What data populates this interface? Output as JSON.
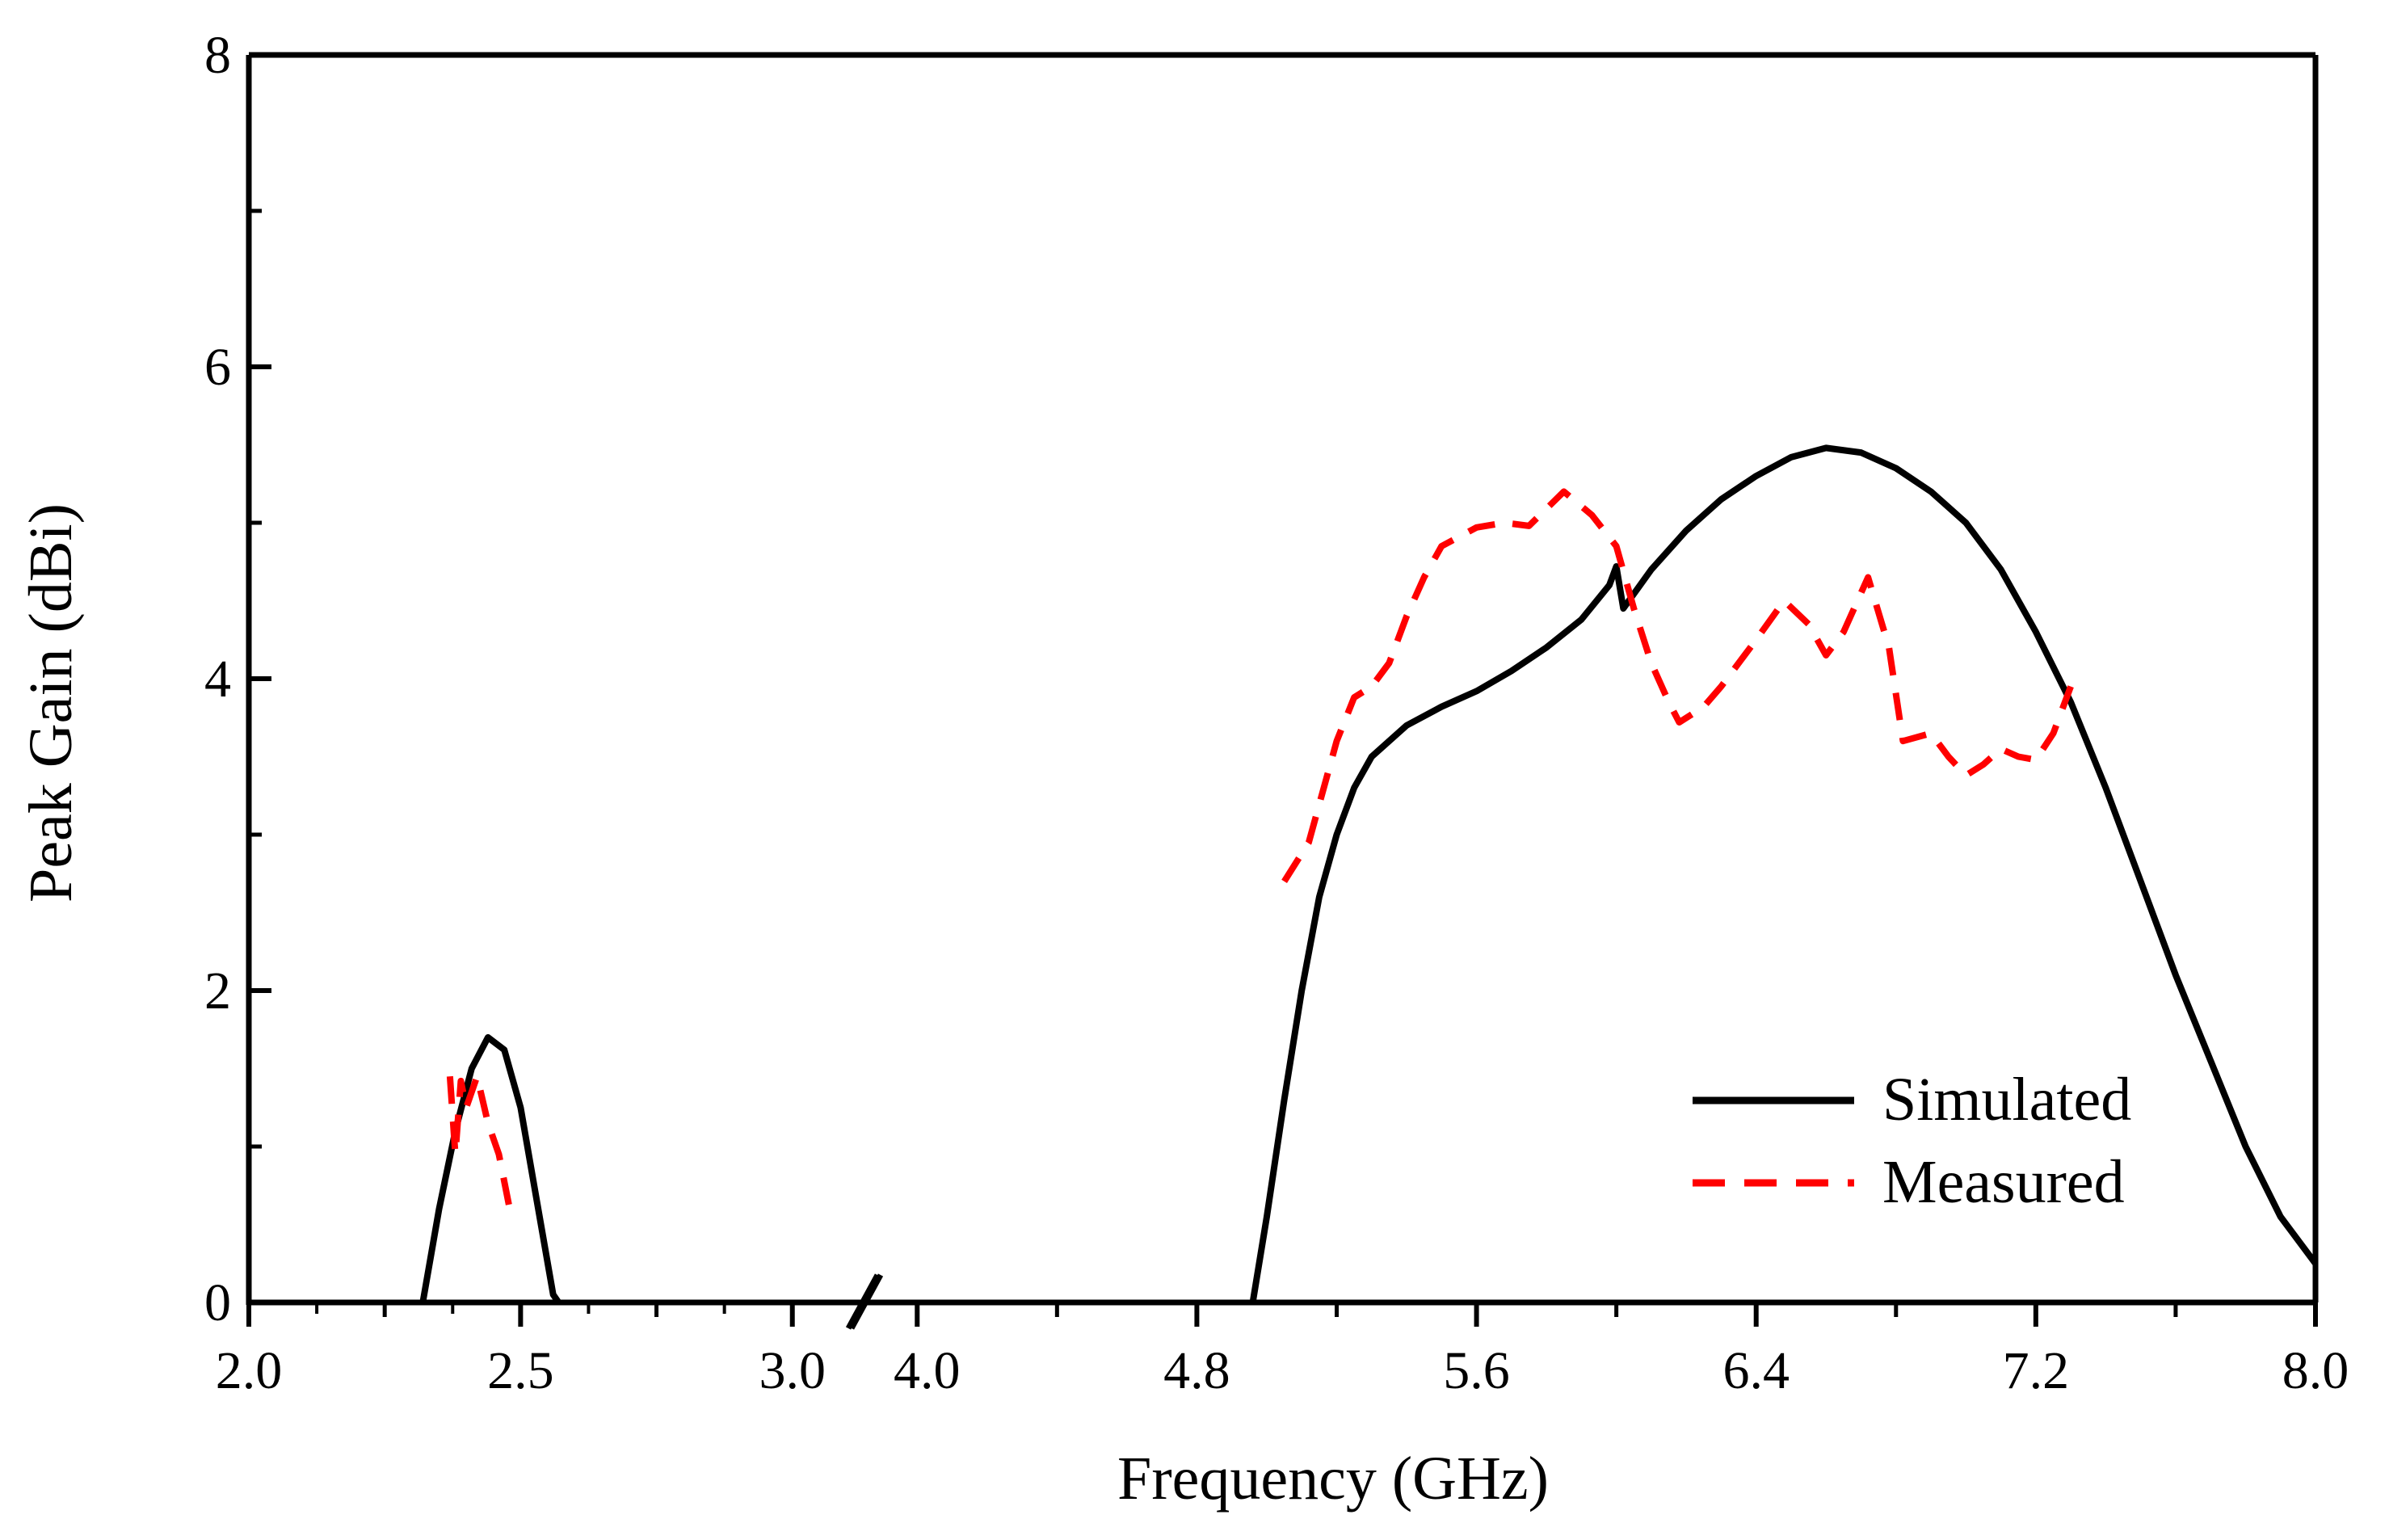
{
  "chart_data": {
    "type": "line",
    "title": "",
    "xlabel": "Frequency (GHz)",
    "ylabel": "Peak Gain (dBi)",
    "ylim": [
      0,
      8
    ],
    "yticks": [
      0,
      2,
      4,
      6,
      8
    ],
    "axis_break": {
      "from": 3.1,
      "to": 3.9
    },
    "x_segments": [
      {
        "range": [
          2.0,
          3.1
        ],
        "ticks": [
          2.0,
          2.5,
          3.0
        ],
        "tick_labels": [
          "2.0",
          "2.5",
          "3.0"
        ]
      },
      {
        "range": [
          3.9,
          8.0
        ],
        "ticks": [
          4.0,
          4.8,
          5.6,
          6.4,
          7.2,
          8.0
        ],
        "tick_labels": [
          "4.0",
          "4.8",
          "5.6",
          "6.4",
          "7.2",
          "8.0"
        ]
      }
    ],
    "legend": {
      "position": "bottom-right",
      "entries": [
        "Simulated",
        "Measured"
      ]
    },
    "series": [
      {
        "name": "Simulated",
        "color": "#000000",
        "style": "solid",
        "segments": [
          [
            [
              2.32,
              0
            ],
            [
              2.35,
              0.6
            ],
            [
              2.38,
              1.1
            ],
            [
              2.41,
              1.5
            ],
            [
              2.44,
              1.7
            ],
            [
              2.47,
              1.62
            ],
            [
              2.5,
              1.25
            ],
            [
              2.53,
              0.65
            ],
            [
              2.56,
              0.05
            ],
            [
              2.57,
              0
            ]
          ],
          [
            [
              4.96,
              0
            ],
            [
              5.0,
              0.55
            ],
            [
              5.05,
              1.3
            ],
            [
              5.1,
              2.0
            ],
            [
              5.15,
              2.6
            ],
            [
              5.2,
              3.0
            ],
            [
              5.25,
              3.3
            ],
            [
              5.3,
              3.5
            ],
            [
              5.4,
              3.7
            ],
            [
              5.5,
              3.82
            ],
            [
              5.6,
              3.92
            ],
            [
              5.7,
              4.05
            ],
            [
              5.8,
              4.2
            ],
            [
              5.9,
              4.38
            ],
            [
              5.98,
              4.6
            ],
            [
              6.0,
              4.72
            ],
            [
              6.02,
              4.45
            ],
            [
              6.1,
              4.7
            ],
            [
              6.2,
              4.95
            ],
            [
              6.3,
              5.15
            ],
            [
              6.4,
              5.3
            ],
            [
              6.5,
              5.42
            ],
            [
              6.6,
              5.48
            ],
            [
              6.7,
              5.45
            ],
            [
              6.8,
              5.35
            ],
            [
              6.9,
              5.2
            ],
            [
              7.0,
              5.0
            ],
            [
              7.1,
              4.7
            ],
            [
              7.2,
              4.3
            ],
            [
              7.3,
              3.85
            ],
            [
              7.4,
              3.3
            ],
            [
              7.5,
              2.7
            ],
            [
              7.6,
              2.1
            ],
            [
              7.7,
              1.55
            ],
            [
              7.8,
              1.0
            ],
            [
              7.9,
              0.55
            ],
            [
              8.0,
              0.25
            ]
          ]
        ]
      },
      {
        "name": "Measured",
        "color": "#ff0000",
        "style": "dashed",
        "segments": [
          [
            [
              2.37,
              1.45
            ],
            [
              2.38,
              0.95
            ],
            [
              2.39,
              1.42
            ],
            [
              2.4,
              1.25
            ],
            [
              2.42,
              1.45
            ],
            [
              2.44,
              1.15
            ],
            [
              2.46,
              0.95
            ],
            [
              2.48,
              0.6
            ]
          ],
          [
            [
              5.05,
              2.7
            ],
            [
              5.12,
              2.95
            ],
            [
              5.2,
              3.6
            ],
            [
              5.25,
              3.88
            ],
            [
              5.3,
              3.95
            ],
            [
              5.35,
              4.1
            ],
            [
              5.4,
              4.4
            ],
            [
              5.45,
              4.65
            ],
            [
              5.5,
              4.85
            ],
            [
              5.6,
              4.97
            ],
            [
              5.68,
              5.0
            ],
            [
              5.75,
              4.98
            ],
            [
              5.85,
              5.2
            ],
            [
              5.93,
              5.05
            ],
            [
              6.0,
              4.85
            ],
            [
              6.05,
              4.45
            ],
            [
              6.1,
              4.1
            ],
            [
              6.15,
              3.85
            ],
            [
              6.18,
              3.72
            ],
            [
              6.25,
              3.82
            ],
            [
              6.3,
              3.95
            ],
            [
              6.4,
              4.25
            ],
            [
              6.48,
              4.5
            ],
            [
              6.55,
              4.35
            ],
            [
              6.6,
              4.15
            ],
            [
              6.65,
              4.3
            ],
            [
              6.72,
              4.65
            ],
            [
              6.78,
              4.2
            ],
            [
              6.82,
              3.6
            ],
            [
              6.9,
              3.65
            ],
            [
              6.95,
              3.5
            ],
            [
              7.0,
              3.38
            ],
            [
              7.05,
              3.45
            ],
            [
              7.1,
              3.55
            ],
            [
              7.15,
              3.5
            ],
            [
              7.2,
              3.48
            ],
            [
              7.25,
              3.65
            ],
            [
              7.3,
              3.95
            ]
          ]
        ]
      }
    ]
  }
}
